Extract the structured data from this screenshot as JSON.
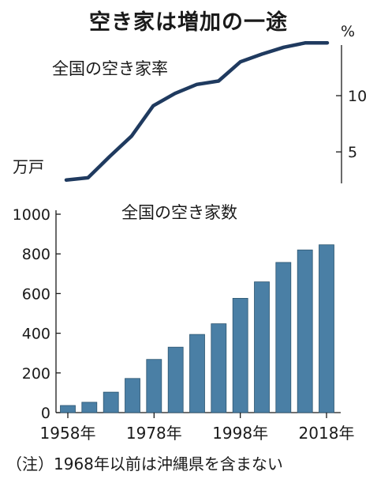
{
  "title": "空き家は増加の一途",
  "note": "（注）1968年以前は沖縄県を含まない",
  "chart_data": [
    {
      "type": "line",
      "title": "全国の空き家率",
      "y_unit": "%",
      "ylim": [
        2.2,
        14.5
      ],
      "yticks": [
        5,
        10
      ],
      "x": [
        1958,
        1963,
        1968,
        1973,
        1978,
        1983,
        1988,
        1993,
        1998,
        2003,
        2008,
        2013,
        2018
      ],
      "values": [
        2.5,
        2.7,
        4.6,
        6.4,
        9.1,
        10.2,
        11.0,
        11.3,
        13.0,
        13.7,
        14.3,
        14.7,
        14.7
      ],
      "color": "#1f3a5f",
      "legend": "none",
      "grid": false
    },
    {
      "type": "bar",
      "title": "全国の空き家数",
      "y_unit": "万戸",
      "ylim": [
        0,
        1000
      ],
      "yticks": [
        0,
        200,
        400,
        600,
        800,
        1000
      ],
      "x": [
        1958,
        1963,
        1968,
        1973,
        1978,
        1983,
        1988,
        1993,
        1998,
        2003,
        2008,
        2013,
        2018
      ],
      "xtick_labels": [
        "1958年",
        "1978年",
        "1998年",
        "2018年"
      ],
      "values": [
        36,
        52,
        103,
        172,
        268,
        330,
        394,
        448,
        576,
        659,
        757,
        820,
        846
      ],
      "color": "#4a7fa5",
      "legend": "none",
      "grid": false
    }
  ]
}
